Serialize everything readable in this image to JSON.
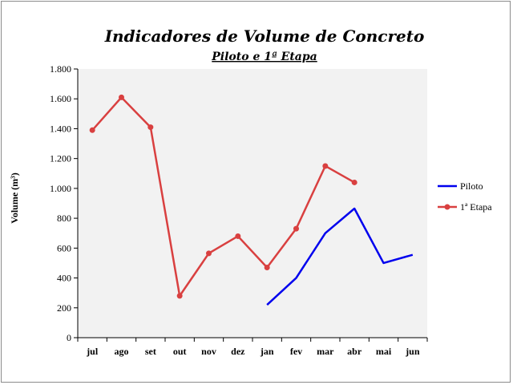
{
  "chart_data": {
    "type": "line",
    "title": "Indicadores de Volume de Concreto",
    "subtitle": "Piloto e 1ª Etapa",
    "xlabel": "",
    "ylabel": "Volume (m³)",
    "ylim": [
      0,
      1800
    ],
    "y_ticks": [
      0,
      200,
      400,
      600,
      800,
      1000,
      1200,
      1400,
      1600,
      1800
    ],
    "y_tick_labels": [
      "0",
      "200",
      "400",
      "600",
      "800",
      "1.000",
      "1.200",
      "1.400",
      "1.600",
      "1.800"
    ],
    "categories": [
      "jul",
      "ago",
      "set",
      "out",
      "nov",
      "dez",
      "jan",
      "fev",
      "mar",
      "abr",
      "mai",
      "jun"
    ],
    "grid": false,
    "legend_position": "right",
    "series": [
      {
        "name": "Piloto",
        "color": "#0000ee",
        "markers": false,
        "values": [
          null,
          null,
          null,
          null,
          null,
          null,
          220,
          400,
          700,
          865,
          500,
          555
        ]
      },
      {
        "name": "1ª Etapa",
        "color": "#d94040",
        "markers": true,
        "values": [
          1390,
          1610,
          1410,
          280,
          565,
          680,
          470,
          730,
          1150,
          1040,
          null,
          null
        ]
      }
    ]
  }
}
